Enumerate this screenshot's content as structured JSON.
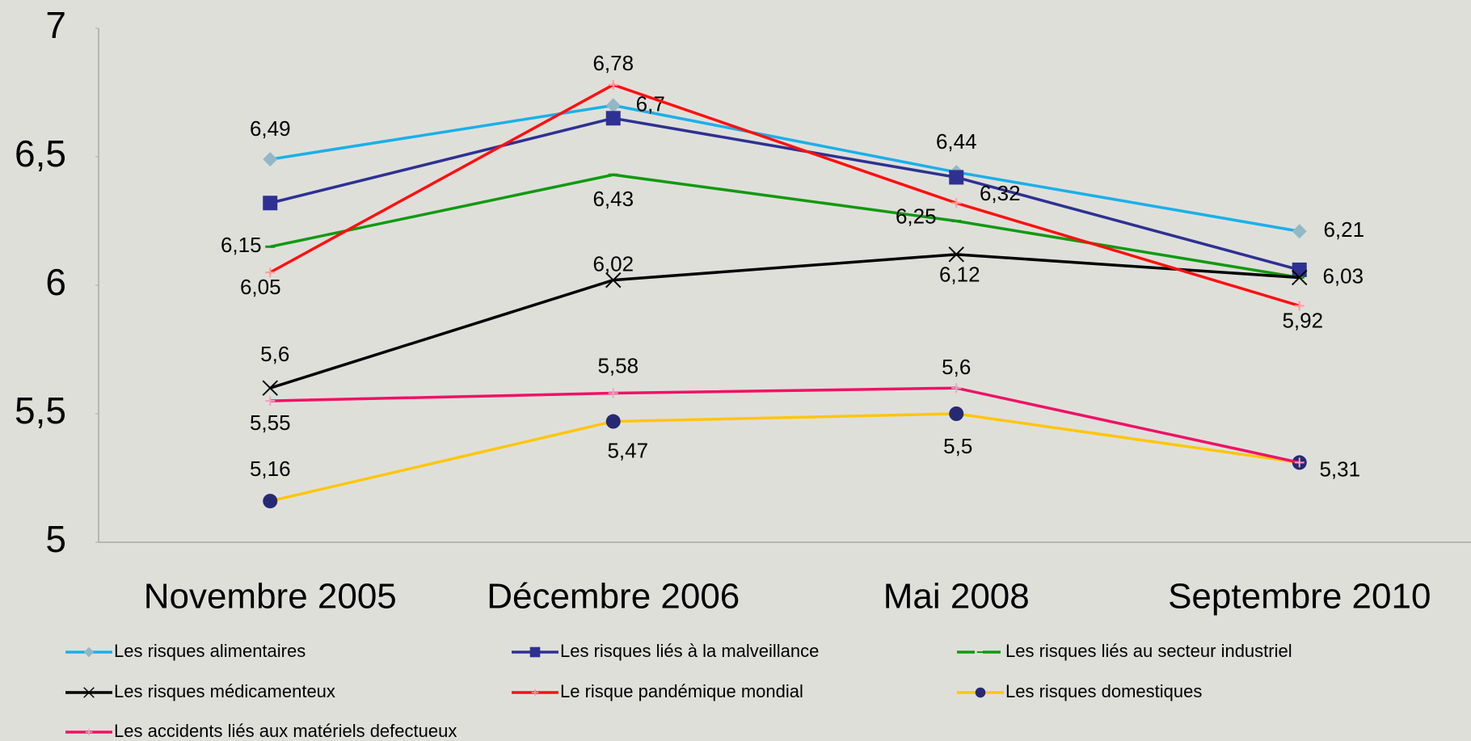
{
  "chart_data": {
    "type": "line",
    "categories": [
      "Novembre 2005",
      "Décembre 2006",
      "Mai 2008",
      "Septembre 2010"
    ],
    "ylim": [
      5,
      7
    ],
    "yticks": [
      5,
      {
        "value": 5.5,
        "label": "5,5"
      },
      6,
      {
        "value": 6.5,
        "label": "6,5"
      },
      7
    ],
    "legend": "bottom",
    "series": [
      {
        "name": "Les risques alimentaires",
        "color": "#1ab0e8",
        "marker": "diamond",
        "marker_color": "#92b8c6",
        "values": [
          6.49,
          6.7,
          6.44,
          6.21
        ],
        "value_labels": [
          "6,49",
          "6,7",
          "6,44",
          "6,21"
        ]
      },
      {
        "name": "Les risques liés à la malveillance",
        "color": "#2e3192",
        "marker": "square",
        "marker_color": "#2e3192",
        "values": [
          6.32,
          6.65,
          6.42,
          6.06
        ]
      },
      {
        "name": "Les risques liés au secteur industriel",
        "color": "#109a10",
        "marker": "dash",
        "marker_color": "#109a10",
        "values": [
          6.15,
          6.43,
          6.25,
          6.03
        ],
        "value_labels": [
          "6,15",
          "6,43",
          "6,25",
          null
        ]
      },
      {
        "name": "Les risques médicamenteux",
        "color": "#000000",
        "marker": "cross",
        "marker_color": "#000000",
        "values": [
          5.6,
          6.02,
          6.12,
          6.03
        ],
        "value_labels": [
          "5,6",
          "6,02",
          "6,12",
          "6,03"
        ]
      },
      {
        "name": "Le risque pandémique mondial",
        "color": "#ff0f0f",
        "marker": "plus",
        "marker_color": "#ff9a9a",
        "values": [
          6.05,
          6.78,
          6.32,
          5.92
        ],
        "value_labels": [
          "6,05",
          "6,78",
          "6,32",
          "5,92"
        ]
      },
      {
        "name": "Les risques domestiques",
        "color": "#ffc60a",
        "marker": "circle",
        "marker_color": "#262a72",
        "values": [
          5.16,
          5.47,
          5.5,
          5.31
        ],
        "value_labels": [
          "5,16",
          "5,47",
          "5,5",
          "5,31"
        ]
      },
      {
        "name": "Les accidents liés aux matériels defectueux",
        "color": "#ee1266",
        "marker": "plus",
        "marker_color": "#f5a0c0",
        "values": [
          5.55,
          5.58,
          5.6,
          5.31
        ],
        "value_labels": [
          "5,55",
          "5,58",
          "5,6",
          null
        ]
      }
    ]
  }
}
